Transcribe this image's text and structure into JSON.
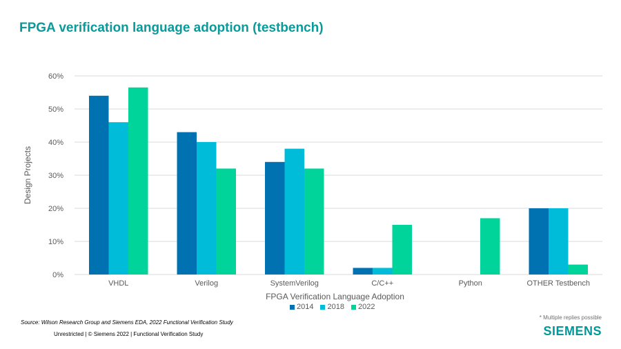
{
  "title": "FPGA verification language adoption (testbench)",
  "chart_data": {
    "type": "bar",
    "title": "FPGA verification language adoption (testbench)",
    "xlabel": "FPGA Verification Language Adoption",
    "ylabel": "Design Projects",
    "ylim": [
      0,
      60
    ],
    "yticks": [
      "0%",
      "10%",
      "20%",
      "30%",
      "40%",
      "50%",
      "60%"
    ],
    "categories": [
      "VHDL",
      "Verilog",
      "SystemVerilog",
      "C/C++",
      "Python",
      "OTHER Testbench"
    ],
    "series": [
      {
        "name": "2014",
        "color": "#0072b2",
        "values": [
          54,
          43,
          34,
          2,
          0,
          20
        ]
      },
      {
        "name": "2018",
        "color": "#00bcd9",
        "values": [
          46,
          40,
          38,
          2,
          0,
          20
        ]
      },
      {
        "name": "2022",
        "color": "#00d49a",
        "values": [
          56.5,
          32,
          32,
          15,
          17,
          3
        ]
      }
    ],
    "legend_position": "bottom",
    "grid": true
  },
  "note": "* Multiple replies possible",
  "source": "Source:  Wilson Research Group and Siemens EDA, 2022 Functional Verification Study",
  "footer": "Unrestricted | © Siemens 2022 |  Functional Verification Study",
  "brand": "SIEMENS"
}
